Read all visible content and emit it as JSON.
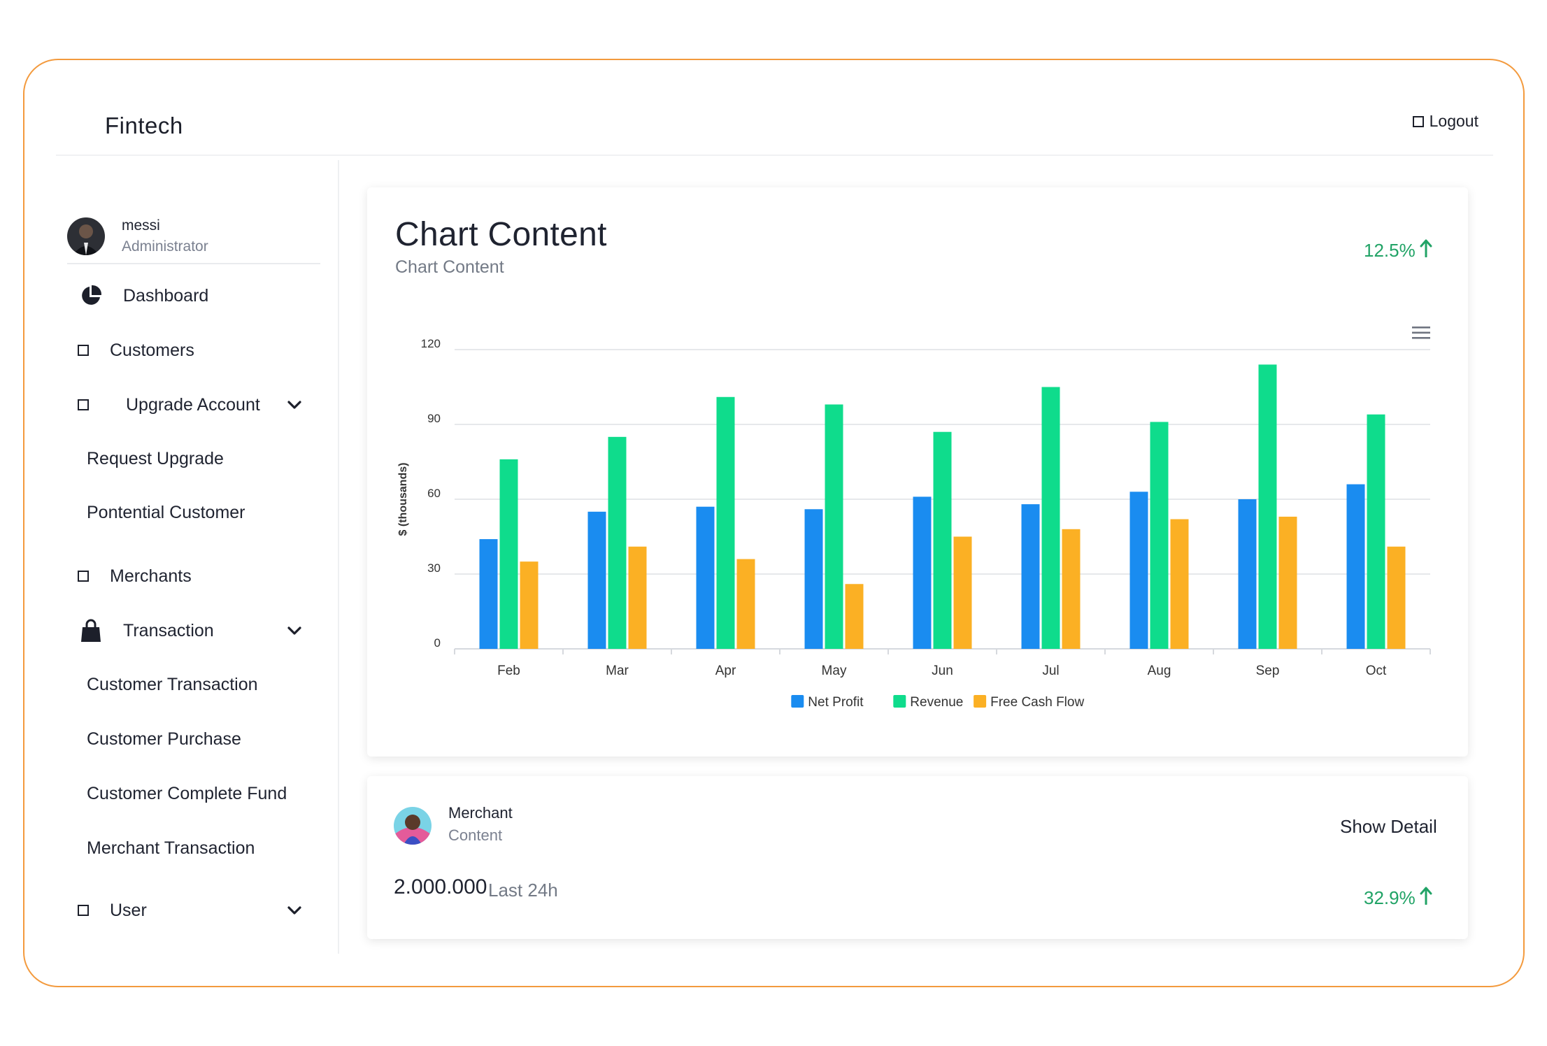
{
  "app": {
    "brand": "Fintech",
    "logout_label": "Logout"
  },
  "user": {
    "name": "messi",
    "role": "Administrator"
  },
  "sidebar": {
    "dashboard": "Dashboard",
    "customers": "Customers",
    "upgrade_account": "Upgrade Account",
    "request_upgrade": "Request Upgrade",
    "potential_customer": "Pontential Customer",
    "merchants": "Merchants",
    "transaction": "Transaction",
    "customer_transaction": "Customer Transaction",
    "customer_purchase": "Customer Purchase",
    "customer_complete_fund": "Customer Complete Fund",
    "merchant_transaction": "Merchant Transaction",
    "user": "User"
  },
  "chart_card": {
    "title": "Chart Content",
    "subtitle": "Chart Content",
    "growth": "12.5%"
  },
  "merchant_card": {
    "title": "Merchant",
    "subtitle": "Content",
    "show_detail": "Show Detail",
    "value": "2.000.000",
    "period": "Last 24h",
    "growth": "32.9%"
  },
  "colors": {
    "net_profit": "#1a8cf0",
    "revenue": "#0fdc8c",
    "free_cash_flow": "#fbb024",
    "growth": "#21a366",
    "accent_border": "#f39a3d"
  },
  "chart_data": {
    "type": "bar",
    "title": "",
    "xlabel": "",
    "ylabel": "$ (thousands)",
    "ylim": [
      0,
      120
    ],
    "yticks": [
      "0",
      "30",
      "60",
      "90",
      "120"
    ],
    "categories": [
      "Feb",
      "Mar",
      "Apr",
      "May",
      "Jun",
      "Jul",
      "Aug",
      "Sep",
      "Oct"
    ],
    "series": [
      {
        "name": "Net Profit",
        "color": "#1a8cf0",
        "values": [
          44,
          55,
          57,
          56,
          61,
          58,
          63,
          60,
          66
        ]
      },
      {
        "name": "Revenue",
        "color": "#0fdc8c",
        "values": [
          76,
          85,
          101,
          98,
          87,
          105,
          91,
          114,
          94
        ]
      },
      {
        "name": "Free Cash Flow",
        "color": "#fbb024",
        "values": [
          35,
          41,
          36,
          26,
          45,
          48,
          52,
          53,
          41
        ]
      }
    ],
    "legend": "bottom-center"
  }
}
